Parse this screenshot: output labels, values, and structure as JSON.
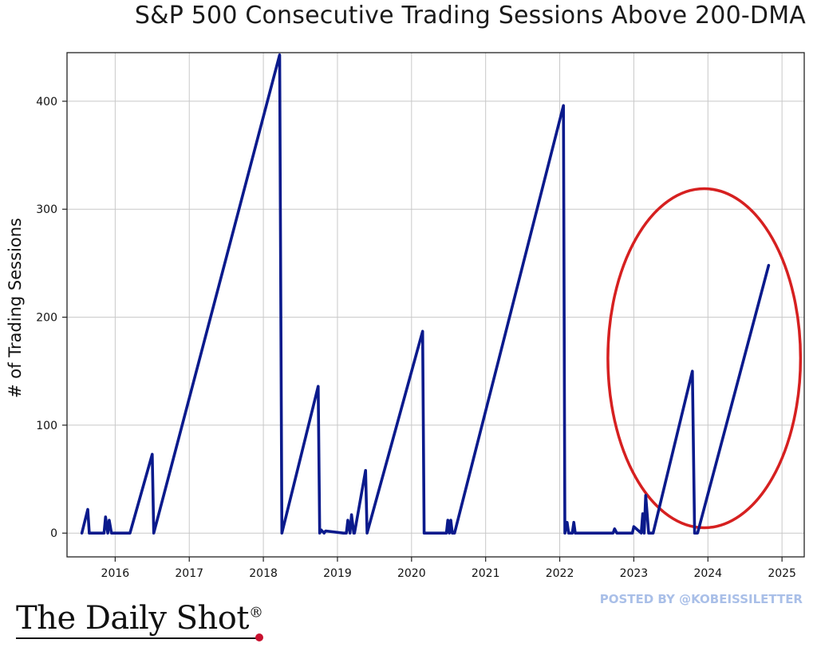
{
  "chart_data": {
    "type": "line",
    "title": "S&P 500 Consecutive Trading Sessions Above 200-DMA",
    "xlabel": "",
    "ylabel": "# of Trading Sessions",
    "xlim": [
      2015.35,
      2025.3
    ],
    "ylim": [
      -22,
      445
    ],
    "x_ticks": [
      2016,
      2017,
      2018,
      2019,
      2020,
      2021,
      2022,
      2023,
      2024,
      2025
    ],
    "x_tick_labels": [
      "2016",
      "2017",
      "2018",
      "2019",
      "2020",
      "2021",
      "2022",
      "2023",
      "2024",
      "2025"
    ],
    "y_ticks": [
      0,
      100,
      200,
      300,
      400
    ],
    "y_tick_labels": [
      "0",
      "100",
      "200",
      "300",
      "400"
    ],
    "grid": true,
    "series": [
      {
        "color": "#0a1a8c",
        "x": [
          2015.55,
          2015.63,
          2015.65,
          2015.85,
          2015.87,
          2015.9,
          2015.92,
          2015.95,
          2015.97,
          2016.2,
          2016.5,
          2016.52,
          2018.22,
          2018.25,
          2018.74,
          2018.76,
          2018.78,
          2018.82,
          2018.84,
          2019.08,
          2019.12,
          2019.14,
          2019.17,
          2019.19,
          2019.22,
          2019.23,
          2019.38,
          2019.4,
          2020.15,
          2020.17,
          2020.47,
          2020.49,
          2020.51,
          2020.53,
          2020.55,
          2020.58,
          2022.05,
          2022.07,
          2022.1,
          2022.12,
          2022.17,
          2022.19,
          2022.21,
          2022.7,
          2022.72,
          2022.74,
          2022.77,
          2022.98,
          2023.0,
          2023.1,
          2023.12,
          2023.14,
          2023.16,
          2023.2,
          2023.23,
          2023.26,
          2023.79,
          2023.82,
          2023.86,
          2024.82
        ],
        "y": [
          0,
          22,
          0,
          0,
          15,
          0,
          12,
          0,
          0,
          0,
          73,
          0,
          443,
          0,
          136,
          0,
          3,
          0,
          2,
          0,
          0,
          12,
          0,
          17,
          0,
          0,
          58,
          0,
          187,
          0,
          0,
          12,
          0,
          12,
          0,
          0,
          396,
          0,
          10,
          0,
          0,
          10,
          0,
          0,
          0,
          4,
          0,
          0,
          6,
          0,
          18,
          0,
          35,
          0,
          0,
          0,
          150,
          0,
          0,
          248
        ]
      }
    ],
    "annotations": [
      {
        "type": "ellipse",
        "color": "#d62020",
        "cx": 2023.95,
        "cy": 162,
        "rx": 1.3,
        "ry": 157
      }
    ]
  },
  "branding": {
    "logo_text": "The Daily Shot",
    "logo_mark": "®",
    "posted_by": "POSTED BY @KOBEISSILETTER"
  },
  "colors": {
    "line": "#0a1a8c",
    "annotation": "#d62020",
    "logo_dot": "#c8102e",
    "posted_text": "#a9bfe8"
  }
}
